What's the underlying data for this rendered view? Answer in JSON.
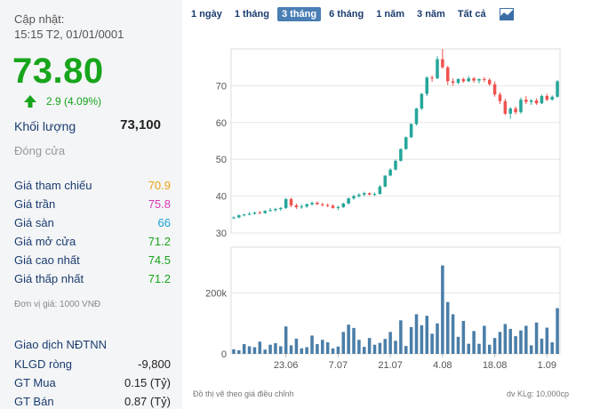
{
  "left": {
    "update_label": "Cập nhật:",
    "update_time": "15:15 T2, 01/01/0001",
    "price": "73.80",
    "change": "2.9 (4.09%)",
    "volume_label": "Khối lượng",
    "volume_value": "73,100",
    "close_label": "Đóng cửa",
    "stats": [
      {
        "label": "Giá tham chiếu",
        "value": "70.9",
        "color": "#e8a317"
      },
      {
        "label": "Giá trần",
        "value": "75.8",
        "color": "#d63bb5"
      },
      {
        "label": "Giá sàn",
        "value": "66",
        "color": "#1aa1d4"
      },
      {
        "label": "Giá mở cửa",
        "value": "71.2",
        "color": "#17a51b"
      },
      {
        "label": "Giá cao nhất",
        "value": "74.5",
        "color": "#17a51b"
      },
      {
        "label": "Giá thấp nhất",
        "value": "71.2",
        "color": "#17a51b"
      }
    ],
    "unit_note": "Đơn vị giá: 1000 VNĐ",
    "ndt_title": "Giao dịch NĐTNN",
    "ndt": [
      {
        "label": "KLGD ròng",
        "value": "-9,800"
      },
      {
        "label": "GT Mua",
        "value": "0.15 (Tỷ)"
      },
      {
        "label": "GT Bán",
        "value": "0.87 (Tỷ)"
      }
    ]
  },
  "tabs": [
    "1 ngày",
    "1 tháng",
    "3 tháng",
    "6 tháng",
    "1 năm",
    "3 năm",
    "Tất cả"
  ],
  "active_tab": "3 tháng",
  "footer_left": "Đồ thị vẽ theo giá điều chỉnh",
  "footer_right": "dv KLg: 10,000cp",
  "colors": {
    "up": "#26a69a",
    "down": "#ef5350",
    "volume": "#4a7ea8",
    "green": "#17a51b"
  },
  "chart_data": {
    "type": "candlestick",
    "price_axis": {
      "min": 30,
      "max": 80,
      "ticks": [
        30,
        40,
        50,
        60,
        70
      ]
    },
    "volume_axis": {
      "ticks": [
        {
          "value": 0,
          "label": "0"
        },
        {
          "value": 200000,
          "label": "200k"
        }
      ],
      "max": 350000
    },
    "x_labels": [
      {
        "label": "23.06",
        "index": 10
      },
      {
        "label": "7.07",
        "index": 20
      },
      {
        "label": "21.07",
        "index": 30
      },
      {
        "label": "4.08",
        "index": 40
      },
      {
        "label": "18.08",
        "index": 50
      },
      {
        "label": "1.09",
        "index": 60
      }
    ],
    "candles": [
      [
        34.0,
        34.5,
        33.8,
        34.2
      ],
      [
        34.2,
        35.0,
        34.0,
        34.8
      ],
      [
        34.8,
        35.2,
        34.5,
        35.0
      ],
      [
        35.0,
        35.6,
        34.8,
        35.2
      ],
      [
        35.2,
        35.8,
        35.0,
        35.5
      ],
      [
        35.5,
        36.0,
        35.2,
        35.4
      ],
      [
        35.4,
        36.2,
        35.2,
        36.0
      ],
      [
        36.0,
        36.8,
        35.8,
        36.2
      ],
      [
        36.2,
        36.8,
        35.8,
        36.5
      ],
      [
        36.5,
        37.0,
        36.0,
        36.8
      ],
      [
        36.8,
        39.5,
        36.5,
        39.2
      ],
      [
        39.2,
        39.6,
        37.0,
        37.5
      ],
      [
        37.5,
        38.0,
        36.5,
        37.0
      ],
      [
        37.0,
        37.8,
        36.6,
        37.2
      ],
      [
        37.2,
        38.0,
        36.8,
        37.8
      ],
      [
        37.8,
        38.5,
        37.4,
        38.2
      ],
      [
        38.2,
        38.6,
        37.6,
        37.8
      ],
      [
        37.8,
        38.2,
        37.2,
        37.6
      ],
      [
        37.6,
        38.0,
        37.0,
        37.4
      ],
      [
        37.4,
        37.8,
        36.6,
        36.8
      ],
      [
        36.8,
        37.4,
        36.2,
        37.0
      ],
      [
        37.0,
        38.2,
        36.8,
        38.0
      ],
      [
        38.0,
        39.6,
        37.8,
        39.4
      ],
      [
        39.4,
        40.4,
        39.0,
        40.0
      ],
      [
        40.0,
        40.8,
        39.6,
        40.4
      ],
      [
        40.4,
        41.2,
        40.0,
        40.8
      ],
      [
        40.8,
        41.0,
        40.2,
        40.4
      ],
      [
        40.4,
        41.0,
        40.0,
        40.6
      ],
      [
        40.6,
        43.0,
        40.4,
        42.6
      ],
      [
        42.6,
        45.6,
        42.4,
        45.6
      ],
      [
        45.6,
        47.6,
        45.4,
        47.2
      ],
      [
        47.2,
        50.0,
        47.0,
        49.6
      ],
      [
        49.6,
        53.0,
        49.4,
        52.8
      ],
      [
        52.8,
        56.2,
        52.6,
        56.0
      ],
      [
        56.0,
        59.8,
        55.8,
        59.6
      ],
      [
        59.6,
        64.0,
        59.2,
        63.8
      ],
      [
        63.8,
        68.0,
        63.4,
        67.8
      ],
      [
        67.8,
        72.6,
        67.2,
        72.2
      ],
      [
        72.2,
        72.8,
        71.0,
        72.0
      ],
      [
        72.0,
        78.0,
        71.8,
        77.2
      ],
      [
        77.2,
        80.0,
        74.6,
        75.0
      ],
      [
        75.0,
        75.4,
        70.2,
        71.2
      ],
      [
        71.2,
        72.0,
        70.0,
        70.8
      ],
      [
        70.8,
        72.0,
        70.4,
        71.8
      ],
      [
        71.8,
        72.2,
        70.8,
        71.2
      ],
      [
        71.2,
        72.6,
        71.0,
        72.0
      ],
      [
        72.0,
        72.4,
        70.8,
        71.4
      ],
      [
        71.4,
        72.0,
        70.6,
        71.8
      ],
      [
        71.8,
        72.4,
        71.0,
        71.6
      ],
      [
        71.6,
        72.0,
        70.0,
        70.4
      ],
      [
        70.4,
        71.2,
        67.0,
        67.6
      ],
      [
        67.6,
        68.2,
        65.0,
        65.8
      ],
      [
        65.8,
        66.4,
        62.0,
        62.4
      ],
      [
        62.4,
        64.2,
        61.0,
        63.8
      ],
      [
        63.8,
        64.4,
        62.2,
        62.8
      ],
      [
        62.8,
        66.8,
        62.4,
        66.2
      ],
      [
        66.2,
        67.2,
        65.0,
        65.6
      ],
      [
        65.6,
        66.4,
        64.8,
        66.0
      ],
      [
        66.0,
        66.6,
        64.8,
        65.2
      ],
      [
        65.2,
        67.6,
        65.0,
        67.2
      ],
      [
        67.2,
        67.8,
        65.8,
        66.2
      ],
      [
        66.2,
        67.4,
        66.0,
        67.0
      ],
      [
        67.0,
        71.5,
        66.8,
        71.2
      ]
    ],
    "volumes": [
      15000,
      12000,
      32000,
      25000,
      22000,
      40000,
      14000,
      30000,
      35000,
      25000,
      90000,
      28000,
      50000,
      18000,
      22000,
      60000,
      32000,
      46000,
      38000,
      18000,
      24000,
      72000,
      96000,
      85000,
      46000,
      23000,
      52000,
      30000,
      36000,
      49000,
      72000,
      43000,
      110000,
      26000,
      88000,
      130000,
      94000,
      125000,
      66000,
      100000,
      290000,
      170000,
      130000,
      56000,
      108000,
      33000,
      75000,
      33000,
      92000,
      30000,
      52000,
      72000,
      98000,
      82000,
      58000,
      77000,
      92000,
      28000,
      103000,
      50000,
      86000,
      38000,
      150000
    ]
  }
}
